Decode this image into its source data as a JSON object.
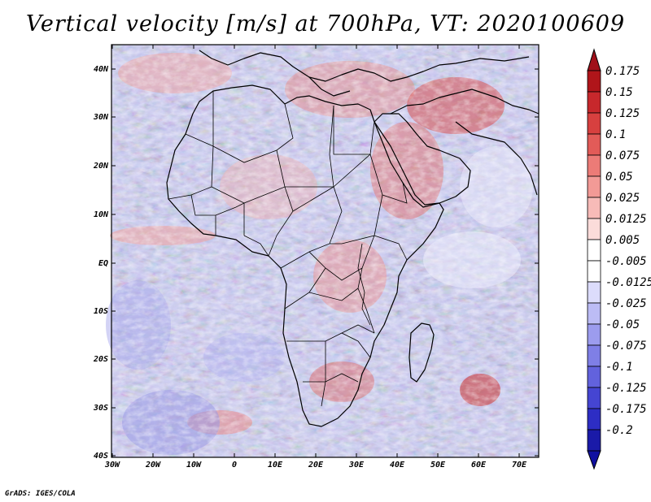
{
  "title": "Vertical velocity [m/s] at 700hPa, VT: 2020100609",
  "credit": "GrADS: IGES/COLA",
  "map": {
    "region": "Africa",
    "lat_labels": [
      "40N",
      "30N",
      "20N",
      "10N",
      "EQ",
      "10S",
      "20S",
      "30S",
      "40S"
    ],
    "lon_labels": [
      "30W",
      "20W",
      "10W",
      "0",
      "10E",
      "20E",
      "30E",
      "40E",
      "50E",
      "60E",
      "70E"
    ],
    "lat_range": [
      -40,
      45
    ],
    "lon_range": [
      -30,
      75
    ]
  },
  "colorbar": {
    "labels": [
      "0.175",
      "0.15",
      "0.125",
      "0.1",
      "0.075",
      "0.05",
      "0.025",
      "0.0125",
      "0.005",
      "-0.005",
      "-0.0125",
      "-0.025",
      "-0.05",
      "-0.075",
      "-0.1",
      "-0.125",
      "-0.175",
      "-0.2"
    ],
    "colors": [
      "#b0151a",
      "#c7282c",
      "#d7403f",
      "#e25b58",
      "#ec7b77",
      "#f29a96",
      "#f7bbb8",
      "#fbdcda",
      "#ffffff",
      "#ffffff",
      "#dcdcfb",
      "#bcbcf5",
      "#9c9cee",
      "#7f7fe6",
      "#6262dd",
      "#4545d2",
      "#2d2dc4",
      "#1a1aa8"
    ],
    "top_color": "#a0101a",
    "bottom_color": "#1010a0"
  }
}
